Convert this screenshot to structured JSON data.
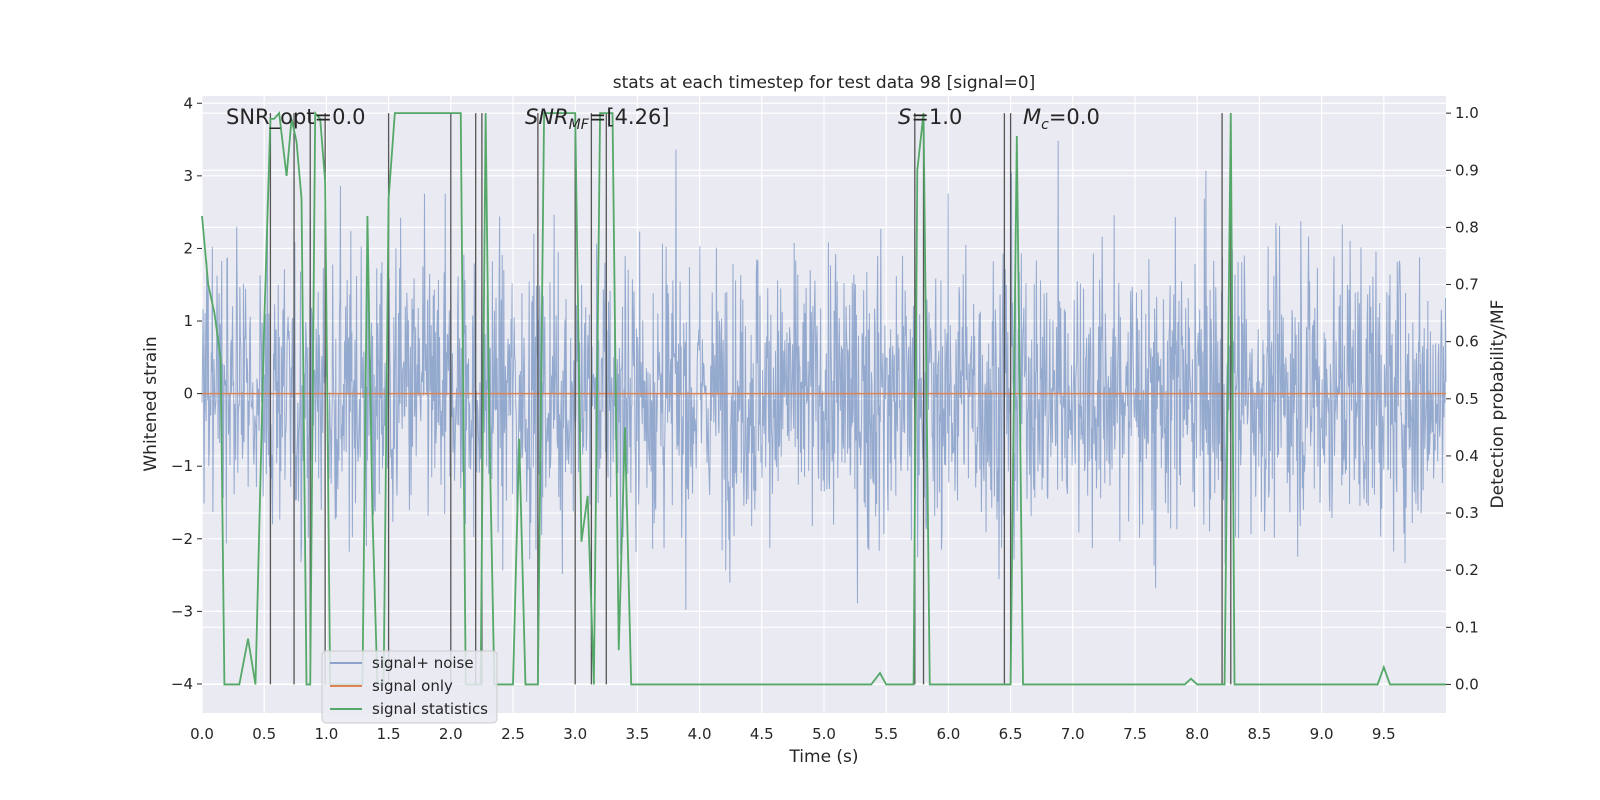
{
  "chart_data": {
    "type": "line",
    "title": "stats at each timestep for test data 98 [signal=0]",
    "xlabel": "Time (s)",
    "ylabel": "Whitened strain",
    "ylabel_right": "Detection probability/MF",
    "xlim": [
      0.0,
      10.0
    ],
    "ylim": [
      -4.4,
      4.1
    ],
    "ylim_right": [
      -0.05,
      1.03
    ],
    "x_ticks": [
      "0.0",
      "0.5",
      "1.0",
      "1.5",
      "2.0",
      "2.5",
      "3.0",
      "3.5",
      "4.0",
      "4.5",
      "5.0",
      "5.5",
      "6.0",
      "6.5",
      "7.0",
      "7.5",
      "8.0",
      "8.5",
      "9.0",
      "9.5"
    ],
    "y_ticks": [
      "4",
      "3",
      "2",
      "1",
      "0",
      "−1",
      "−2",
      "−3",
      "−4"
    ],
    "y_ticks_right": [
      "1.0",
      "0.9",
      "0.8",
      "0.7",
      "0.6",
      "0.5",
      "0.4",
      "0.3",
      "0.2",
      "0.1",
      "0.0"
    ],
    "grid": true,
    "legend_position": "lower-left",
    "annotations": {
      "snr_opt": "SNR_opt=0.0",
      "snr_mf_name": "SNR",
      "snr_mf_sub": "MF",
      "snr_mf_value": "=[4.26]",
      "s_name": "S",
      "s_value": "=1.0",
      "mc_name": "M",
      "mc_sub": "c",
      "mc_value": "=0.0"
    },
    "colors": {
      "background": "#eaeaf2",
      "signal_noise": "#4c72b0",
      "signal_only": "#dd8452",
      "signal_statistics": "#55a868",
      "vlines": "#555555"
    },
    "series": [
      {
        "name": "signal+ noise",
        "axis": "left",
        "description_values": "whitened noise, roughly |y| < 2.5 with spikes to about ±3.8"
      },
      {
        "name": "signal only",
        "axis": "left",
        "x": [
          0,
          10
        ],
        "y": [
          0,
          0
        ]
      },
      {
        "name": "signal statistics",
        "axis": "right",
        "x": [
          0.0,
          0.05,
          0.1,
          0.15,
          0.18,
          0.3,
          0.37,
          0.43,
          0.5,
          0.55,
          0.58,
          0.62,
          0.68,
          0.72,
          0.76,
          0.8,
          0.84,
          0.87,
          0.91,
          0.95,
          0.99,
          1.03,
          1.07,
          1.12,
          1.17,
          1.21,
          1.25,
          1.29,
          1.33,
          1.37,
          1.41,
          1.46,
          1.5,
          1.55,
          1.6,
          1.65,
          1.7,
          1.75,
          1.8,
          1.85,
          1.9,
          1.95,
          2.0,
          2.05,
          2.08,
          2.12,
          2.16,
          2.2,
          2.24,
          2.28,
          2.31,
          2.35,
          2.4,
          2.45,
          2.5,
          2.55,
          2.6,
          2.65,
          2.7,
          2.75,
          2.8,
          2.85,
          2.9,
          2.95,
          3.0,
          3.05,
          3.1,
          3.15,
          3.2,
          3.25,
          3.3,
          3.35,
          3.4,
          3.45,
          3.5,
          4.0,
          4.5,
          5.0,
          5.38,
          5.45,
          5.5,
          5.58,
          5.65,
          5.72,
          5.75,
          5.8,
          5.85,
          5.9,
          6.0,
          6.2,
          6.3,
          6.4,
          6.46,
          6.5,
          6.55,
          6.6,
          6.65,
          7.0,
          7.5,
          7.9,
          7.95,
          8.0,
          8.1,
          8.18,
          8.22,
          8.27,
          8.3,
          8.5,
          9.0,
          9.45,
          9.5,
          9.55,
          9.6,
          10.0
        ],
        "y": [
          0.82,
          0.7,
          0.65,
          0.57,
          0.0,
          0.0,
          0.08,
          0.0,
          0.63,
          0.99,
          0.99,
          1.0,
          0.89,
          0.99,
          0.95,
          0.85,
          0.0,
          0.0,
          1.0,
          0.99,
          0.88,
          0.0,
          0.0,
          0.0,
          0.0,
          0.0,
          0.0,
          0.0,
          0.82,
          0.3,
          0.0,
          0.0,
          0.85,
          1.0,
          1.0,
          1.0,
          1.0,
          1.0,
          1.0,
          1.0,
          1.0,
          1.0,
          1.0,
          1.0,
          1.0,
          0.0,
          0.0,
          0.0,
          0.0,
          1.0,
          0.45,
          0.0,
          0.0,
          0.0,
          0.0,
          0.43,
          0.0,
          0.0,
          0.0,
          1.0,
          1.0,
          1.0,
          1.0,
          1.0,
          1.0,
          0.25,
          0.33,
          0.0,
          1.0,
          1.0,
          1.0,
          0.06,
          0.45,
          0.0,
          0.0,
          0.0,
          0.0,
          0.0,
          0.0,
          0.02,
          0.0,
          0.0,
          0.0,
          0.0,
          0.9,
          1.0,
          0.0,
          0.0,
          0.0,
          0.0,
          0.0,
          0.0,
          0.0,
          0.0,
          0.96,
          0.0,
          0.0,
          0.0,
          0.0,
          0.0,
          0.01,
          0.0,
          0.0,
          0.0,
          0.0,
          1.0,
          0.0,
          0.0,
          0.0,
          0.0,
          0.03,
          0.0,
          0.0,
          0.0
        ]
      },
      {
        "name": "vertical markers",
        "axis": "right",
        "x": [
          0.55,
          0.74,
          0.87,
          0.99,
          1.5,
          2.0,
          2.2,
          2.25,
          2.7,
          3.0,
          3.13,
          3.25,
          5.73,
          5.8,
          6.45,
          6.5,
          8.2,
          8.27
        ],
        "y_range": [
          0.0,
          1.0
        ]
      }
    ],
    "legend": [
      "signal+ noise",
      "signal only",
      "signal statistics"
    ]
  }
}
